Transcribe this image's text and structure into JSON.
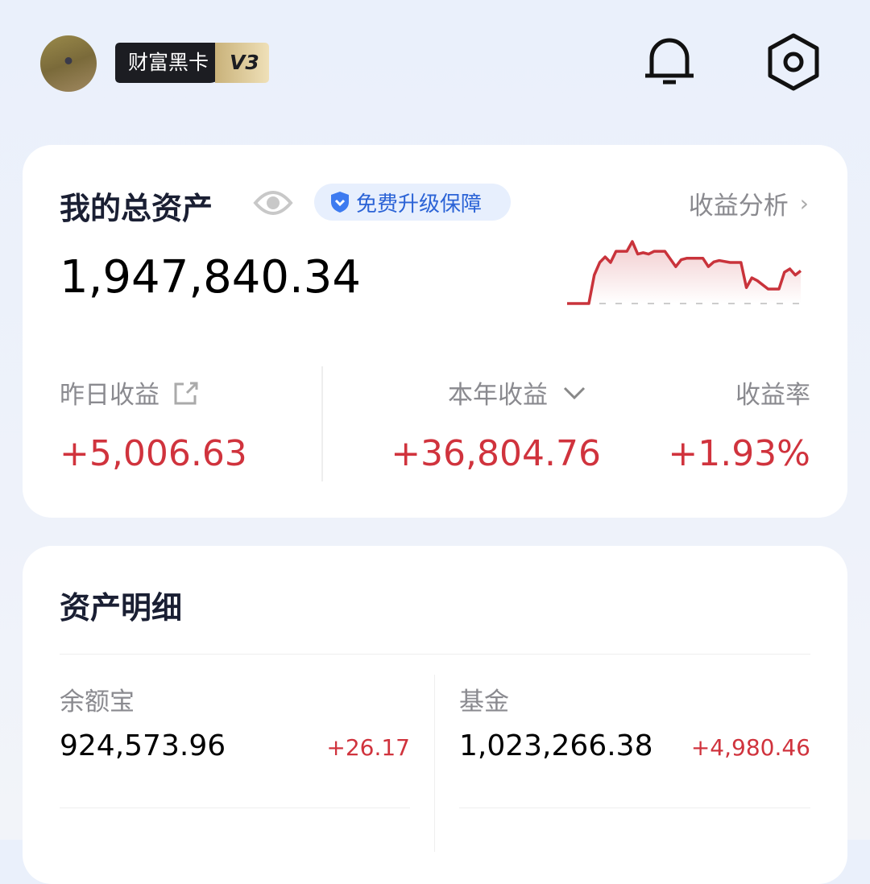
{
  "header": {
    "badge_label": "财富黑卡",
    "badge_level": "V3"
  },
  "assets": {
    "title": "我的总资产",
    "protect_label": "免费升级保障",
    "analysis_link": "收益分析",
    "total": "1,947,840.34",
    "yesterday_label": "昨日收益",
    "yesterday_value": "+5,006.63",
    "year_label": "本年收益",
    "year_value": "+36,804.76",
    "rate_label": "收益率",
    "rate_value": "+1.93%",
    "sparkline": {
      "t": [
        0,
        4,
        5,
        6,
        7,
        8,
        9,
        11,
        12,
        13,
        14,
        15,
        16,
        18,
        20,
        21,
        22,
        25,
        26,
        27,
        28,
        30,
        32,
        33,
        34,
        35,
        37,
        39,
        40,
        41,
        42,
        43
      ],
      "v": [
        0,
        0,
        102,
        147,
        167,
        147,
        187,
        187,
        222,
        177,
        182,
        177,
        187,
        187,
        132,
        157,
        162,
        162,
        132,
        149,
        154,
        147,
        147,
        57,
        92,
        82,
        52,
        52,
        112,
        124,
        102,
        117
      ],
      "color": "#c9333b"
    }
  },
  "detail": {
    "title": "资产明细",
    "items": [
      {
        "name": "余额宝",
        "value": "924,573.96",
        "change": "+26.17"
      },
      {
        "name": "基金",
        "value": "1,023,266.38",
        "change": "+4,980.46"
      }
    ]
  },
  "colors": {
    "positive": "#d0333d",
    "accent": "#3d7bf0"
  }
}
